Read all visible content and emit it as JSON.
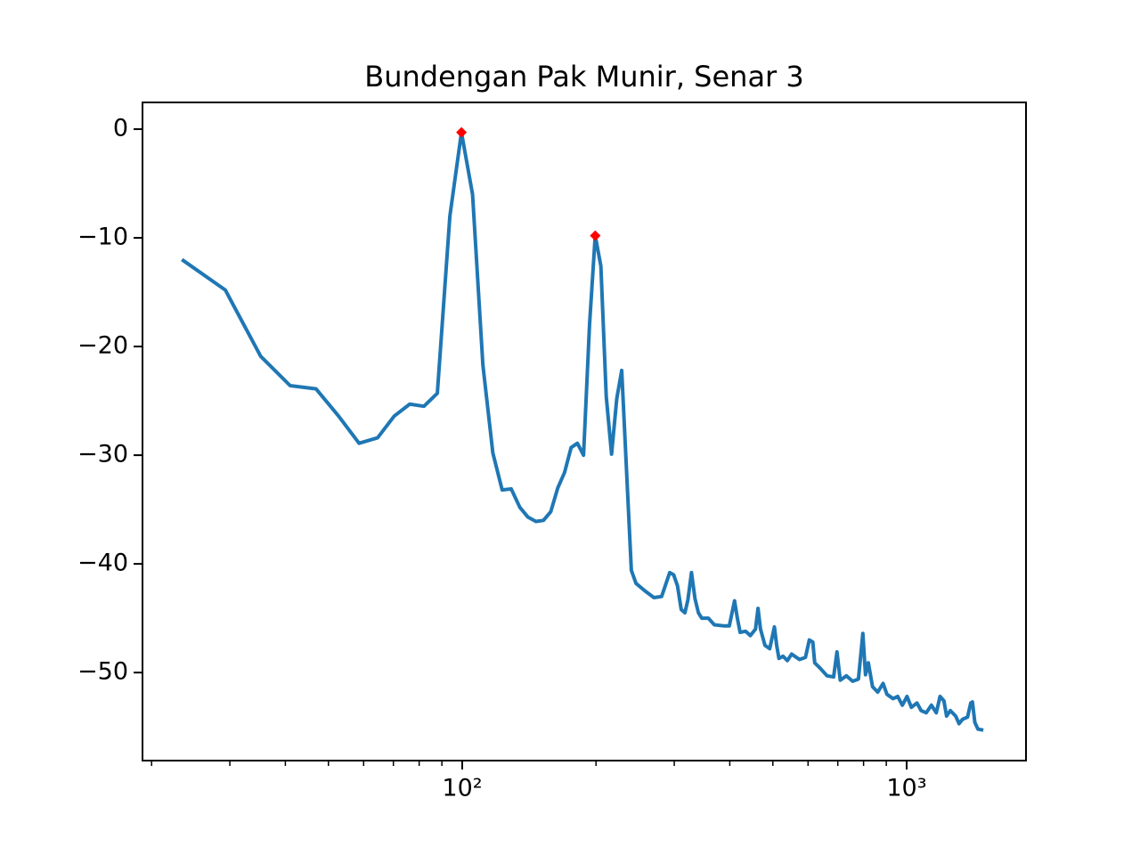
{
  "chart_data": {
    "type": "line",
    "title": "Bundengan Pak Munir, Senar 3",
    "xscale": "log",
    "x": [
      23.4,
      29.3,
      35.2,
      41.0,
      46.9,
      52.7,
      58.6,
      64.5,
      70.3,
      76.2,
      82.0,
      87.9,
      93.8,
      99.6,
      105.5,
      111.3,
      117.2,
      123.0,
      128.9,
      134.8,
      140.6,
      146.5,
      152.3,
      158.2,
      164.1,
      169.9,
      175.8,
      181.6,
      187.5,
      193.4,
      199.2,
      205.1,
      210.9,
      216.8,
      222.7,
      228.5,
      234.4,
      240.2,
      246.1,
      258,
      270,
      281,
      293,
      299,
      305,
      311,
      317,
      322,
      328,
      334,
      340,
      346,
      358,
      369,
      387,
      399,
      410,
      416,
      422,
      434,
      445,
      457,
      463,
      469,
      480,
      492,
      504,
      510,
      516,
      527,
      539,
      551,
      574,
      592,
      604,
      615,
      621,
      639,
      662,
      685,
      697,
      709,
      732,
      756,
      779,
      797,
      808,
      820,
      838,
      861,
      885,
      903,
      932,
      955,
      978,
      1002,
      1025,
      1055,
      1078,
      1107,
      1137,
      1166,
      1189,
      1213,
      1230,
      1254,
      1289,
      1312,
      1336,
      1371,
      1394,
      1406,
      1424,
      1447,
      1488
    ],
    "series": [
      {
        "color": "#1f77b4",
        "values": [
          -12.0,
          -14.8,
          -20.9,
          -23.6,
          -23.9,
          -26.4,
          -28.9,
          -28.4,
          -26.4,
          -25.3,
          -25.5,
          -24.3,
          -8.0,
          -0.3,
          -6.0,
          -21.7,
          -29.8,
          -33.2,
          -33.1,
          -34.8,
          -35.7,
          -36.1,
          -36.0,
          -35.2,
          -33.0,
          -31.6,
          -29.3,
          -28.9,
          -30.0,
          -18.0,
          -9.8,
          -12.6,
          -24.6,
          -29.9,
          -24.8,
          -22.2,
          -31.6,
          -40.6,
          -41.8,
          -42.5,
          -43.1,
          -43.0,
          -40.8,
          -41.0,
          -42.0,
          -44.2,
          -44.5,
          -43.3,
          -40.8,
          -43.2,
          -44.5,
          -45.0,
          -45.0,
          -45.6,
          -45.7,
          -45.7,
          -43.4,
          -45.0,
          -46.3,
          -46.2,
          -46.6,
          -46.0,
          -44.1,
          -46.0,
          -47.5,
          -47.8,
          -45.8,
          -47.5,
          -48.7,
          -48.5,
          -48.9,
          -48.3,
          -48.8,
          -48.6,
          -47.0,
          -47.2,
          -49.1,
          -49.6,
          -50.3,
          -50.4,
          -48.1,
          -50.7,
          -50.3,
          -50.8,
          -50.6,
          -46.4,
          -50.2,
          -49.1,
          -51.3,
          -51.8,
          -51.0,
          -52.0,
          -52.4,
          -52.2,
          -53.0,
          -52.2,
          -53.2,
          -52.8,
          -53.5,
          -53.7,
          -53.0,
          -53.7,
          -52.2,
          -52.6,
          -54.0,
          -53.5,
          -54.0,
          -54.7,
          -54.3,
          -54.1,
          -52.8,
          -52.7,
          -54.6,
          -55.2,
          -55.3
        ]
      }
    ],
    "peaks": {
      "x": [
        99.6,
        199.2
      ],
      "values": [
        -0.3,
        -9.8
      ],
      "color": "#ff0000"
    },
    "xlim": [
      19.08,
      1856
    ],
    "ylim": [
      -58.1,
      2.46
    ],
    "xticks": [
      {
        "value": 100,
        "label": "10²"
      },
      {
        "value": 1000,
        "label": "10³"
      }
    ],
    "xminorticks": [
      20,
      30,
      40,
      50,
      60,
      70,
      80,
      90,
      200,
      300,
      400,
      500,
      600,
      700,
      800,
      900
    ],
    "yticks": [
      {
        "value": -50,
        "label": "−50"
      },
      {
        "value": -40,
        "label": "−40"
      },
      {
        "value": -30,
        "label": "−30"
      },
      {
        "value": -20,
        "label": "−20"
      },
      {
        "value": -10,
        "label": "−10"
      },
      {
        "value": 0,
        "label": "0"
      }
    ]
  }
}
